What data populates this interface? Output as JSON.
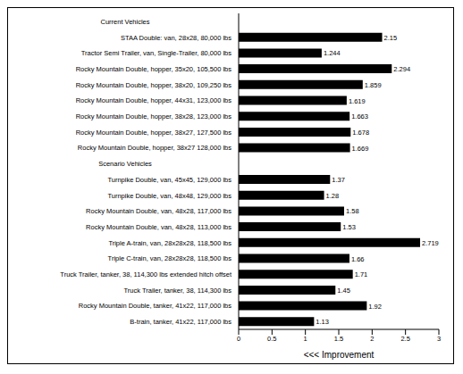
{
  "chart_data": {
    "type": "bar",
    "orientation": "horizontal",
    "categories": [
      "Current Vehicles",
      "STAA Double: van, 28x28, 80,000 lbs",
      "Tractor Semi Trailer, van, Single-Trailer, 80,000 lbs",
      "Rocky Mountain Double, hopper, 35x20, 105,500 lbs",
      "Rocky Mountain Double, hopper, 38x20, 109,250 lbs",
      "Rocky Mountain Double, hopper, 44x31, 123,000 lbs",
      "Rocky Mountain Double, hopper, 38x28, 123,000 lbs",
      "Rocky Mountain Double, hopper, 38x27, 127,500 lbs",
      "Rocky Mountain Double, hopper, 38x27 128,000 lbs",
      "Scenario Vehicles",
      "Turnpike Double, van, 45x45, 129,000 lbs",
      "Turnpike Double, van, 48x48, 129,000 lbs",
      "Rocky Mountain Double, van, 48x28, 117,000 lbs",
      "Rocky Mountain Double, van, 48x28, 113,000 lbs",
      "Triple A-train, van, 28x28x28, 118,500 lbs",
      "Triple C-train, van, 28x28x28, 118,500 lbs",
      "Truck Trailer, tanker, 38, 114,300 lbs extended hitch offset",
      "Truck Trailer, tanker, 38, 114,300 lbs",
      "Rocky Mountain Double, tanker, 41x22, 117,000 lbs",
      "B-train, tanker, 41x22, 117,000 lbs"
    ],
    "values": [
      null,
      2.15,
      1.244,
      2.294,
      1.859,
      1.619,
      1.663,
      1.678,
      1.669,
      null,
      1.37,
      1.28,
      1.58,
      1.53,
      2.719,
      1.66,
      1.71,
      1.45,
      1.92,
      1.13
    ],
    "color": "#000000",
    "xlim": [
      0,
      3
    ],
    "xticks": [
      0,
      0.5,
      1,
      1.5,
      2,
      2.5,
      3
    ],
    "x_label": "<<< Improvement",
    "data_labels": true,
    "grid": false
  }
}
